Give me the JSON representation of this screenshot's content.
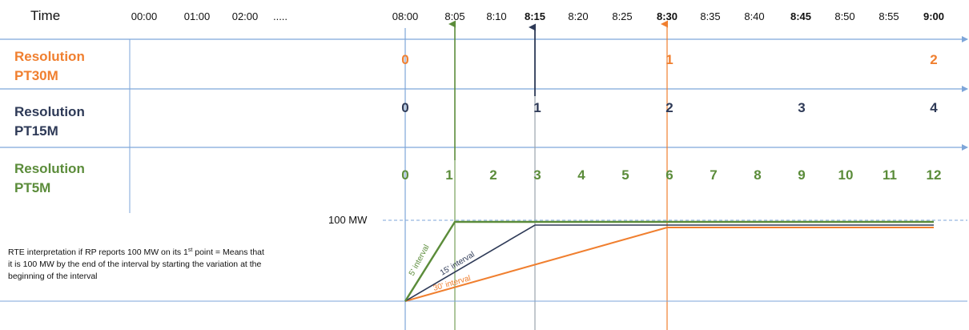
{
  "header": {
    "time_label": "Time",
    "ticks": [
      "00:00",
      "01:00",
      "02:00",
      ".....",
      "08:00",
      "8:05",
      "8:10",
      "8:15",
      "8:20",
      "8:25",
      "8:30",
      "8:35",
      "8:40",
      "8:45",
      "8:50",
      "8:55",
      "9:00"
    ],
    "bold_ticks": [
      "8:15",
      "8:30",
      "8:45",
      "9:00"
    ]
  },
  "rows": [
    {
      "line1": "Resolution",
      "line2": "PT30M",
      "color": "#f07f2f",
      "numbers": [
        "0",
        "1",
        "2"
      ],
      "at_minutes": [
        0,
        30,
        60
      ]
    },
    {
      "line1": "Resolution",
      "line2": "PT15M",
      "color": "#2e3a57",
      "numbers": [
        "0",
        "1",
        "2",
        "3",
        "4"
      ],
      "at_minutes": [
        0,
        15,
        30,
        45,
        60
      ]
    },
    {
      "line1": "Resolution",
      "line2": "PT5M",
      "color": "#5b8c3a",
      "numbers": [
        "0",
        "1",
        "2",
        "3",
        "4",
        "5",
        "6",
        "7",
        "8",
        "9",
        "10",
        "11",
        "12"
      ],
      "at_minutes": [
        0,
        5,
        10,
        15,
        20,
        25,
        30,
        35,
        40,
        45,
        50,
        55,
        60
      ]
    }
  ],
  "ramp": {
    "level_label": "100 MW",
    "note_line1": "RTE interpretation if RP reports 100 MW on its 1",
    "note_sup": "st",
    "note_line1_end": " point = Means that",
    "note_line2": "it is 100 MW by the end of the interval by starting the variation at the",
    "note_line3": "beginning of the interval",
    "series": [
      {
        "label": "5' interval",
        "color": "#5b8c3a",
        "reach_minute": 5
      },
      {
        "label": "15' interval",
        "color": "#2e3a57",
        "reach_minute": 15
      },
      {
        "label": "30' interval",
        "color": "#f07f2f",
        "reach_minute": 30
      }
    ]
  },
  "colors": {
    "grid": "#7ea6d9",
    "green": "#5b8c3a",
    "navy": "#2e3a57",
    "orange": "#f07f2f"
  }
}
